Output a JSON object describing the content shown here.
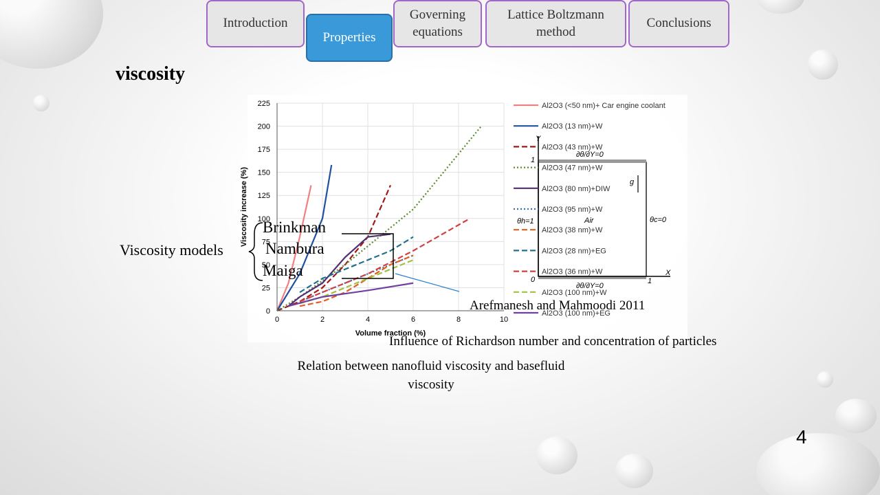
{
  "nav": [
    "Introduction",
    "Properties",
    "Governing equations",
    "Lattice Boltzmann method",
    "Conclusions"
  ],
  "title": "viscosity",
  "chart_data": {
    "type": "line",
    "ylabel": "Viscosity increase (%)",
    "xlabel": "Volume fraction (%)",
    "xlim": [
      0,
      10
    ],
    "xticks": [
      0,
      2,
      4,
      6,
      8,
      10
    ],
    "ylim": [
      0,
      225
    ],
    "yticks": [
      0,
      25,
      50,
      75,
      100,
      125,
      150,
      175,
      200,
      225
    ],
    "grid": true,
    "series": [
      {
        "name": "Al2O3 (<50 nm)+ Car engine coolant",
        "color": "#f08080",
        "style": "solid",
        "x": [
          0,
          0.5,
          1,
          1.5
        ],
        "values": [
          0,
          30,
          80,
          136
        ]
      },
      {
        "name": "Al2O3 (13 nm)+W",
        "color": "#2050a0",
        "style": "solid",
        "x": [
          0,
          1,
          2,
          2.4
        ],
        "values": [
          0,
          40,
          100,
          158
        ]
      },
      {
        "name": "Al2O3 (43 nm)+W",
        "color": "#a01818",
        "style": "dashed",
        "x": [
          0,
          1,
          2,
          3,
          4,
          5
        ],
        "values": [
          0,
          10,
          25,
          50,
          80,
          136
        ]
      },
      {
        "name": "Al2O3 (47 nm)+W",
        "color": "#5a8a2a",
        "style": "dotted",
        "x": [
          0,
          1,
          3,
          6,
          9
        ],
        "values": [
          0,
          15,
          50,
          110,
          200
        ]
      },
      {
        "name": "Al2O3 (80 nm)+DIW",
        "color": "#503070",
        "style": "solid",
        "x": [
          0.5,
          1,
          2,
          3,
          4,
          5
        ],
        "values": [
          5,
          15,
          30,
          58,
          80,
          83
        ]
      },
      {
        "name": "Al2O3 (95 nm)+W",
        "color": "#3070b0",
        "style": "dotted",
        "x": [
          1,
          2,
          4,
          6
        ],
        "values": [
          10,
          20,
          40,
          60
        ]
      },
      {
        "name": "Al2O3 (38 nm)+W",
        "color": "#e06020",
        "style": "dashed",
        "x": [
          1,
          2,
          3,
          4,
          5,
          6
        ],
        "values": [
          5,
          10,
          20,
          35,
          50,
          60
        ]
      },
      {
        "name": "Al2O3 (28 nm)+EG",
        "color": "#207090",
        "style": "dashed",
        "x": [
          1,
          2,
          3,
          4,
          5,
          6
        ],
        "values": [
          20,
          35,
          45,
          55,
          65,
          80
        ]
      },
      {
        "name": "Al2O3 (36 nm)+W",
        "color": "#d04040",
        "style": "dashed",
        "x": [
          1,
          2,
          4,
          6,
          8.5
        ],
        "values": [
          10,
          20,
          40,
          65,
          100
        ]
      },
      {
        "name": "Al2O3 (100 nm)+W",
        "color": "#a0c040",
        "style": "dashed",
        "x": [
          1,
          2,
          4,
          6
        ],
        "values": [
          8,
          15,
          35,
          55
        ]
      },
      {
        "name": "Al2O3 (100 nm)+EG",
        "color": "#7040a0",
        "style": "solid",
        "x": [
          0.5,
          2,
          4,
          6
        ],
        "values": [
          5,
          15,
          22,
          30
        ]
      }
    ]
  },
  "diagram": {
    "y_axis": "Y",
    "y_one": "1",
    "top_bc": "∂θ/∂Y=0",
    "gravity": "g",
    "left_bc": "θh=1",
    "fluid": "Air",
    "right_bc": "θc=0",
    "origin": "0",
    "x_one": "1",
    "x_axis": "X",
    "bottom_bc": "∂θ/∂Y=0"
  },
  "models": {
    "label": "Viscosity models",
    "items": [
      "Brinkman",
      "Nambura",
      "Maiga"
    ]
  },
  "reference": "Arefmanesh and Mahmoodi 2011",
  "caption_right": "Influence of Richardson number and concentration of particles",
  "caption_left": "Relation between nanofluid viscosity and basefluid viscosity",
  "page_number": "4"
}
